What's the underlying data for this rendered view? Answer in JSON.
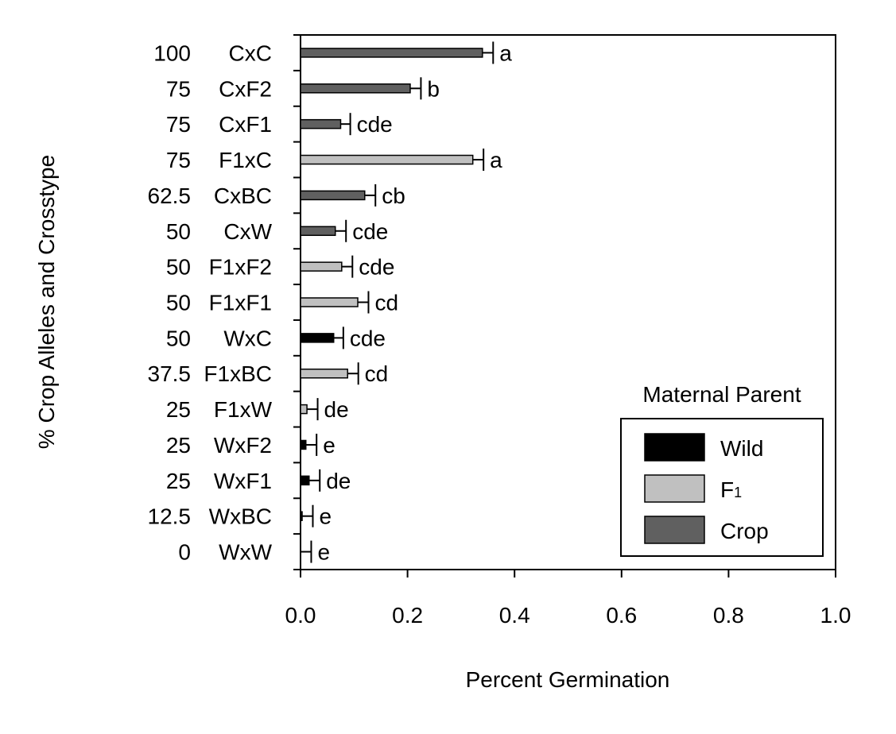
{
  "chart_data": {
    "type": "bar",
    "orientation": "horizontal",
    "title": "",
    "xlabel": "Percent Germination",
    "ylabel": "% Crop Alleles and Crosstype",
    "xlim": [
      0,
      1.0
    ],
    "xticks": [
      "0.0",
      "0.2",
      "0.4",
      "0.6",
      "0.8",
      "1.0"
    ],
    "legend": {
      "title": "Maternal Parent",
      "placement": "bottom-right",
      "entries": [
        {
          "key": "wild",
          "label": "Wild",
          "color": "#000000"
        },
        {
          "key": "f1",
          "label": "F",
          "sub": "1",
          "color": "#c0c0c0"
        },
        {
          "key": "crop",
          "label": "Crop",
          "color": "#606060"
        }
      ]
    },
    "bars": [
      {
        "pct": "100",
        "cross": "CxC",
        "value": 0.34,
        "error": 0.02,
        "letters": "a",
        "parent": "crop"
      },
      {
        "pct": "75",
        "cross": "CxF2",
        "value": 0.205,
        "error": 0.02,
        "letters": "b",
        "parent": "crop"
      },
      {
        "pct": "75",
        "cross": "CxF1",
        "value": 0.075,
        "error": 0.018,
        "letters": "cde",
        "parent": "crop"
      },
      {
        "pct": "75",
        "cross": "F1xC",
        "value": 0.322,
        "error": 0.02,
        "letters": "a",
        "parent": "f1"
      },
      {
        "pct": "62.5",
        "cross": "CxBC",
        "value": 0.12,
        "error": 0.02,
        "letters": "cb",
        "parent": "crop"
      },
      {
        "pct": "50",
        "cross": "CxW",
        "value": 0.065,
        "error": 0.02,
        "letters": "cde",
        "parent": "crop"
      },
      {
        "pct": "50",
        "cross": "F1xF2",
        "value": 0.077,
        "error": 0.02,
        "letters": "cde",
        "parent": "f1"
      },
      {
        "pct": "50",
        "cross": "F1xF1",
        "value": 0.107,
        "error": 0.02,
        "letters": "cd",
        "parent": "f1"
      },
      {
        "pct": "50",
        "cross": "WxC",
        "value": 0.062,
        "error": 0.018,
        "letters": "cde",
        "parent": "wild"
      },
      {
        "pct": "37.5",
        "cross": "F1xBC",
        "value": 0.088,
        "error": 0.02,
        "letters": "cd",
        "parent": "f1"
      },
      {
        "pct": "25",
        "cross": "F1xW",
        "value": 0.012,
        "error": 0.02,
        "letters": "de",
        "parent": "f1"
      },
      {
        "pct": "25",
        "cross": "WxF2",
        "value": 0.01,
        "error": 0.02,
        "letters": "e",
        "parent": "wild"
      },
      {
        "pct": "25",
        "cross": "WxF1",
        "value": 0.016,
        "error": 0.02,
        "letters": "de",
        "parent": "wild"
      },
      {
        "pct": "12.5",
        "cross": "WxBC",
        "value": 0.003,
        "error": 0.02,
        "letters": "e",
        "parent": "wild"
      },
      {
        "pct": "0",
        "cross": "WxW",
        "value": 0.0,
        "error": 0.02,
        "letters": "e",
        "parent": "wild"
      }
    ]
  }
}
